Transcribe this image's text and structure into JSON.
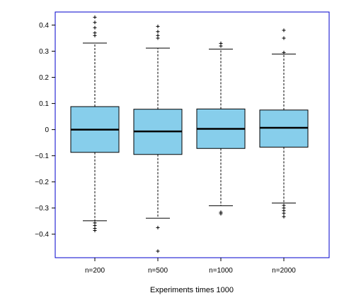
{
  "chart_data": {
    "type": "boxplot",
    "title": "",
    "xlabel": "Experiments times 1000",
    "ylabel": "",
    "categories": [
      "n=200",
      "n=500",
      "n=1000",
      "n=2000"
    ],
    "ylim": [
      -0.49,
      0.45
    ],
    "yticks": [
      0.4,
      0.3,
      0.2,
      0.1,
      0,
      -0.1,
      -0.2,
      -0.3,
      -0.4
    ],
    "ytick_labels": [
      "0.4",
      "0.3",
      "0.2",
      "0.1",
      "0",
      "−0.1",
      "−0.2",
      "−0.3",
      "−0.4"
    ],
    "grid": false,
    "legend": "none",
    "boxes": [
      {
        "category": "n=200",
        "q1": -0.087,
        "median": 0.0,
        "q3": 0.088,
        "whisker_low": -0.349,
        "whisker_high": 0.331,
        "outliers": [
          0.43,
          0.41,
          0.39,
          0.37,
          0.36,
          -0.357,
          -0.367,
          -0.378,
          -0.386
        ]
      },
      {
        "category": "n=500",
        "q1": -0.095,
        "median": -0.007,
        "q3": 0.078,
        "whisker_low": -0.339,
        "whisker_high": 0.312,
        "outliers": [
          0.395,
          0.375,
          0.36,
          0.35,
          -0.375,
          -0.465
        ]
      },
      {
        "category": "n=1000",
        "q1": -0.072,
        "median": 0.003,
        "q3": 0.079,
        "whisker_low": -0.291,
        "whisker_high": 0.308,
        "outliers": [
          0.33,
          0.32,
          -0.316,
          -0.322
        ]
      },
      {
        "category": "n=2000",
        "q1": -0.067,
        "median": 0.007,
        "q3": 0.075,
        "whisker_low": -0.281,
        "whisker_high": 0.289,
        "outliers": [
          0.38,
          0.35,
          0.295,
          -0.29,
          -0.3,
          -0.31,
          -0.32,
          -0.333
        ]
      }
    ],
    "colors": {
      "box_fill": "#87ceeb",
      "box_stroke": "#000000",
      "frame": "#0000cd",
      "whisker": "#000000",
      "outlier": "#000000"
    }
  }
}
